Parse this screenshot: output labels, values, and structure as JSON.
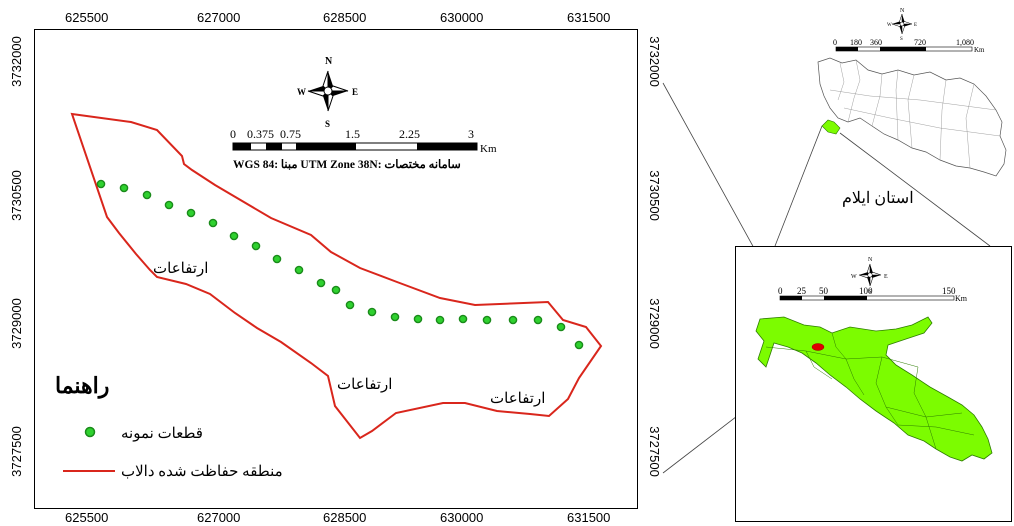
{
  "main_map": {
    "x_ticks": [
      "625500",
      "627000",
      "628500",
      "630000",
      "631500"
    ],
    "y_ticks": [
      "3732000",
      "3730500",
      "3729000",
      "3727500"
    ],
    "elevation_labels": [
      "ارتفاعات",
      "ارتفاعات",
      "ارتفاعات"
    ],
    "north_arrow": {
      "n": "N",
      "s": "S",
      "e": "E",
      "w": "W"
    },
    "scale_bar": {
      "labels": [
        "0",
        "0.375",
        "0.75",
        "1.5",
        "2.25",
        "3"
      ],
      "unit": "Km"
    },
    "coord_system": "WGS 84:  مبنا  UTM Zone 38N: سامانه مختصات",
    "sample_plot_count": 22
  },
  "legend": {
    "title": "راهنما",
    "items": [
      {
        "label": "قطعات نمونه",
        "symbol": "green-dot"
      },
      {
        "label": "منطقه حفاظت شده دالاب",
        "symbol": "red-line"
      }
    ]
  },
  "iran_inset": {
    "north_arrow": {
      "n": "N",
      "s": "S",
      "e": "E",
      "w": "W"
    },
    "scale_bar": {
      "labels": [
        "0",
        "180",
        "360",
        "720",
        "1,080"
      ],
      "unit": "Km"
    }
  },
  "province_label": "استان ایلام",
  "ilam_inset": {
    "north_arrow": {
      "n": "N",
      "s": "S",
      "e": "E",
      "w": "W"
    },
    "scale_bar": {
      "labels": [
        "0",
        "25",
        "50",
        "100",
        "150"
      ],
      "unit": "Km"
    }
  },
  "colors": {
    "boundary": "#d9261c",
    "plot_fill": "#2fd12f",
    "plot_stroke": "#1a8a1a",
    "province_fill": "#7cfc00"
  }
}
